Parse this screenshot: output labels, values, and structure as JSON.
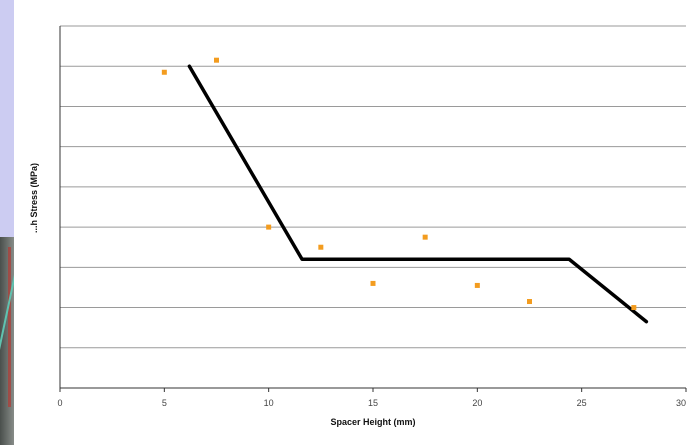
{
  "chart_data": {
    "type": "scatter",
    "title": "",
    "xlabel": "Spacer Height (mm)",
    "ylabel": "...h Stress (MPa)",
    "xlim": [
      0,
      30
    ],
    "ylim": [
      0,
      9
    ],
    "x_ticks": [
      "0",
      "5",
      "10",
      "15",
      "20",
      "25",
      "30"
    ],
    "y_tick_labels_visible": false,
    "grid": "horizontal",
    "legend": "none",
    "series": [
      {
        "marker": "square",
        "color": "#f39c1f",
        "points": [
          {
            "x": 5.0,
            "y": 7.85
          },
          {
            "x": 7.5,
            "y": 8.15
          },
          {
            "x": 10.0,
            "y": 4.0
          },
          {
            "x": 12.5,
            "y": 3.5
          },
          {
            "x": 15.0,
            "y": 2.6
          },
          {
            "x": 17.5,
            "y": 3.75
          },
          {
            "x": 20.0,
            "y": 2.55
          },
          {
            "x": 22.5,
            "y": 2.15
          },
          {
            "x": 27.5,
            "y": 2.0
          }
        ]
      },
      {
        "line_style": "solid",
        "color": "#000000",
        "points": [
          {
            "x": 6.2,
            "y": 8.0
          },
          {
            "x": 11.6,
            "y": 3.2
          },
          {
            "x": 24.4,
            "y": 3.2
          },
          {
            "x": 28.1,
            "y": 1.65
          }
        ]
      }
    ]
  }
}
